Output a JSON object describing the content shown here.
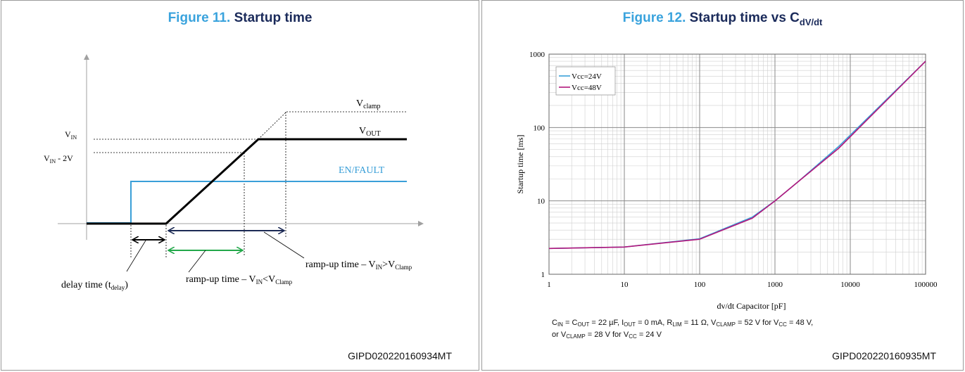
{
  "fig11": {
    "num": "Figure 11.",
    "title": "Startup time",
    "code": "GIPD020220160934MT",
    "labels": {
      "vclamp": "V",
      "vclamp_sub": "clamp",
      "vout": "V",
      "vout_sub": "OUT",
      "vin": "V",
      "vin_sub": "IN",
      "vin2": "V",
      "vin2_sub": "IN",
      "vin2_tail": " - 2V",
      "enfault": "EN/FAULT",
      "ramp1": "ramp-up time – V",
      "ramp1_sub1": "IN",
      "ramp1_mid": ">V",
      "ramp1_sub2": "Clamp",
      "ramp2": "ramp-up time – V",
      "ramp2_sub1": "IN",
      "ramp2_mid": "<V",
      "ramp2_sub2": "Clamp",
      "delay": "delay time  (t",
      "delay_sub": "delay",
      "delay_tail": ")"
    },
    "colors": {
      "vout": "#000000",
      "enfault": "#3a9fd8",
      "arrow_delay": "#000000",
      "arrow_ramp_clamp": "#1c2a55",
      "arrow_ramp_in": "#22a84a"
    }
  },
  "fig12": {
    "num": "Figure 12.",
    "title": "Startup time vs C",
    "title_sub": "dV/dt",
    "code": "GIPD020220160935MT",
    "note": {
      "line1": [
        {
          "t": "C"
        },
        {
          "s": "IN"
        },
        {
          "t": " = C"
        },
        {
          "s": "OUT"
        },
        {
          "t": " = 22 µF, I"
        },
        {
          "s": "OUT"
        },
        {
          "t": " = 0 mA, R"
        },
        {
          "s": "LIM"
        },
        {
          "t": " = 11 Ω, V"
        },
        {
          "s": "CLAMP"
        },
        {
          "t": " = 52 V for V"
        },
        {
          "s": "CC"
        },
        {
          "t": " = 48 V,"
        }
      ],
      "line2": [
        {
          "t": "or V"
        },
        {
          "s": "CLAMP"
        },
        {
          "t": " = 28 V for V"
        },
        {
          "s": "CC"
        },
        {
          "t": " = 24 V"
        }
      ]
    }
  },
  "chart_data": [
    {
      "type": "line",
      "title": "Startup time",
      "xlabel": "",
      "ylabel": "",
      "series": [
        {
          "name": "V",
          "x": [
            0,
            1,
            1,
            2,
            3,
            10
          ],
          "y": [
            0,
            0,
            0,
            0,
            1,
            1
          ]
        },
        {
          "name": "EN/FAULT",
          "x": [
            0,
            1,
            1,
            10
          ],
          "y": [
            0,
            0,
            1,
            1
          ]
        }
      ]
    },
    {
      "type": "line",
      "title": "Startup time vs C dV/dt",
      "xlabel": "dv/dt Capacitor [pF]",
      "ylabel": "Startup time [ms]",
      "xscale": "log",
      "yscale": "log",
      "xlim": [
        1,
        100000
      ],
      "ylim": [
        1,
        1000
      ],
      "xticks": [
        "1",
        "10",
        "100",
        "1000",
        "10000",
        "100000"
      ],
      "yticks": [
        "1",
        "10",
        "100",
        "1000"
      ],
      "grid": true,
      "legend": "top-left",
      "series": [
        {
          "name": "Vcc=24V",
          "color": "#3aa0d8",
          "x": [
            1,
            10,
            100,
            500,
            1000,
            2000,
            7000,
            100000
          ],
          "y": [
            2.25,
            2.35,
            3.05,
            6.0,
            10.0,
            18.0,
            55.0,
            800
          ]
        },
        {
          "name": "Vcc=48V",
          "color": "#b3177c",
          "x": [
            1,
            10,
            100,
            500,
            1000,
            2000,
            7000,
            100000
          ],
          "y": [
            2.25,
            2.35,
            3.0,
            5.8,
            10.0,
            18.0,
            52.0,
            800
          ]
        }
      ]
    }
  ]
}
